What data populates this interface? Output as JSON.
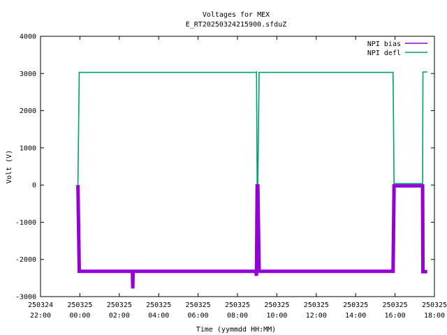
{
  "chart_data": {
    "type": "line",
    "title": "Voltages for MEX",
    "subtitle": "E_RT20250324215900.sfduZ",
    "xlabel": "Time (yymmdd HH:MM)",
    "ylabel": "Volt (V)",
    "xlim": [
      "2025-03-24 22:00",
      "2025-03-25 18:00"
    ],
    "ylim": [
      -3000,
      4000
    ],
    "yticks": [
      -3000,
      -2000,
      -1000,
      0,
      1000,
      2000,
      3000,
      4000
    ],
    "ytick_labels": [
      "-3000",
      "-2000",
      "-1000",
      "0",
      "1000",
      "2000",
      "3000",
      "4000"
    ],
    "xticks": [
      {
        "time": "2025-03-24 22:00",
        "date": "250324",
        "clock": "22:00"
      },
      {
        "time": "2025-03-25 00:00",
        "date": "250325",
        "clock": "00:00"
      },
      {
        "time": "2025-03-25 02:00",
        "date": "250325",
        "clock": "02:00"
      },
      {
        "time": "2025-03-25 04:00",
        "date": "250325",
        "clock": "04:00"
      },
      {
        "time": "2025-03-25 06:00",
        "date": "250325",
        "clock": "06:00"
      },
      {
        "time": "2025-03-25 08:00",
        "date": "250325",
        "clock": "08:00"
      },
      {
        "time": "2025-03-25 10:00",
        "date": "250325",
        "clock": "10:00"
      },
      {
        "time": "2025-03-25 12:00",
        "date": "250325",
        "clock": "12:00"
      },
      {
        "time": "2025-03-25 14:00",
        "date": "250325",
        "clock": "14:00"
      },
      {
        "time": "2025-03-25 16:00",
        "date": "250325",
        "clock": "16:00"
      },
      {
        "time": "2025-03-25 18:00",
        "date": "250325",
        "clock": "18:00"
      }
    ],
    "grid": false,
    "legend_position": "top-right",
    "series": [
      {
        "name": "NPI bias",
        "color": "#9400d3",
        "points": [
          [
            "2025-03-24 23:54",
            0
          ],
          [
            "2025-03-24 23:58",
            -2320
          ],
          [
            "2025-03-25 02:40",
            -2320
          ],
          [
            "2025-03-25 02:41",
            -2780
          ],
          [
            "2025-03-25 02:42",
            -2320
          ],
          [
            "2025-03-25 08:56",
            -2320
          ],
          [
            "2025-03-25 08:58",
            -2440
          ],
          [
            "2025-03-25 09:00",
            -20
          ],
          [
            "2025-03-25 09:02",
            -20
          ],
          [
            "2025-03-25 09:06",
            -2320
          ],
          [
            "2025-03-25 15:54",
            -2320
          ],
          [
            "2025-03-25 15:57",
            -20
          ],
          [
            "2025-03-25 17:24",
            -20
          ],
          [
            "2025-03-25 17:25",
            -2330
          ],
          [
            "2025-03-25 17:38",
            -2330
          ]
        ]
      },
      {
        "name": "NPI defl",
        "color": "#009e73",
        "points": [
          [
            "2025-03-24 23:54",
            0
          ],
          [
            "2025-03-24 23:58",
            3030
          ],
          [
            "2025-03-25 08:56",
            3030
          ],
          [
            "2025-03-25 08:58",
            3040
          ],
          [
            "2025-03-25 09:00",
            30
          ],
          [
            "2025-03-25 09:02",
            30
          ],
          [
            "2025-03-25 09:06",
            3030
          ],
          [
            "2025-03-25 15:54",
            3030
          ],
          [
            "2025-03-25 15:57",
            40
          ],
          [
            "2025-03-25 17:24",
            40
          ],
          [
            "2025-03-25 17:25",
            3040
          ],
          [
            "2025-03-25 17:38",
            3040
          ]
        ]
      }
    ]
  }
}
